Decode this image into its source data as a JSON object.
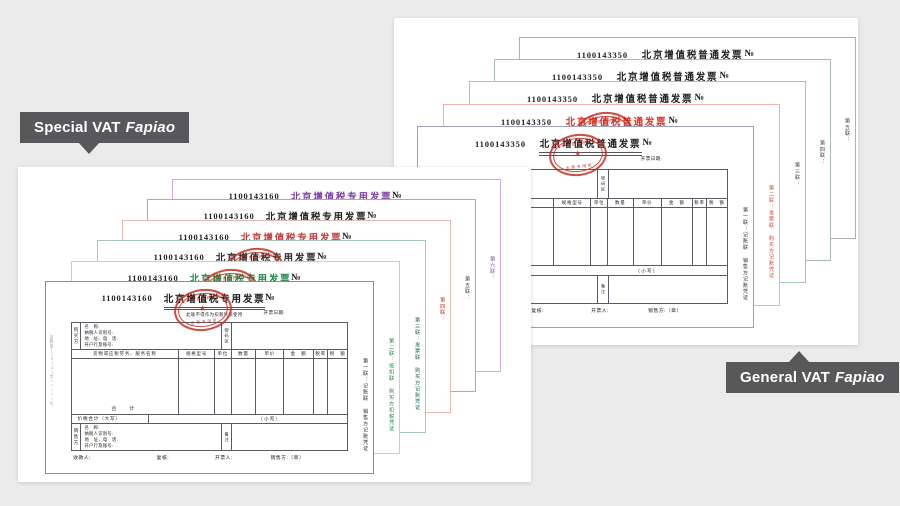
{
  "background": "#ebebeb",
  "labels": {
    "bg": "#58585a",
    "fg": "#ffffff",
    "special": {
      "text": "Special VAT",
      "em": "Fapiao"
    },
    "general": {
      "text": "General VAT",
      "em": "Fapiao"
    }
  },
  "invoice_common": {
    "no_symbol": "№",
    "date_label": "开票日期:",
    "buyer_party_label": "购买方",
    "seller_party_label": "销售方",
    "party_rows": [
      "名　称:",
      "纳税人识别号:",
      "地　址、电　话:",
      "开户行及账号:"
    ],
    "password_area_label": "密码区",
    "remarks_label": "备注",
    "item_headers": [
      "货物或应税劳务、服务名称",
      "规格型号",
      "单位",
      "数量",
      "单价",
      "金　额",
      "税率",
      "税　额"
    ],
    "total_label": "合　计",
    "grand_total_label": "价税合计（大写）",
    "small_figures_label": "（小写）",
    "footer_items": [
      "收款人:",
      "复核:",
      "开票人:",
      "销售方:（章）"
    ],
    "left_strip_text": "京税监[2014]字×××××号",
    "stamp": {
      "top": "北京市国家税务局",
      "middle": "★",
      "bottom": "发票专用章"
    }
  },
  "stacks": [
    {
      "id": "general",
      "serial": "1100143350",
      "title": "北京增值税普通发票",
      "subtitle_note": "",
      "sheets": [
        {
          "copy_label": "第五联：",
          "title_color": "#1f1f1f",
          "border_color": "#b0b0b0",
          "label_color": "#444444",
          "stamp": false,
          "full": false
        },
        {
          "copy_label": "第四联：",
          "title_color": "#1f1f1f",
          "border_color": "#a8bcb4",
          "label_color": "#444444",
          "stamp": false,
          "full": false
        },
        {
          "copy_label": "第三联：",
          "title_color": "#1f1f1f",
          "border_color": "#a6c4bc",
          "label_color": "#444444",
          "stamp": false,
          "full": false
        },
        {
          "copy_label": "第二联：发票联 购买方记账凭证",
          "title_color": "#d93424",
          "border_color": "#f0b2a2",
          "label_color": "#d94a36",
          "stamp": true,
          "full": false
        },
        {
          "copy_label": "第一联：记账联 销售方记账凭证",
          "title_color": "#1f1f1f",
          "border_color": "#99a1b2",
          "label_color": "#333333",
          "stamp": true,
          "full": true
        }
      ]
    },
    {
      "id": "special",
      "serial": "1100143160",
      "title": "北京增值税专用发票",
      "subtitle_note": "此联不得作为扣税凭证使用",
      "sheets": [
        {
          "copy_label": "第六联：",
          "title_color": "#7b3fa0",
          "border_color": "#d2a9da",
          "label_color": "#8a4fa8",
          "stamp": false,
          "full": false
        },
        {
          "copy_label": "第五联：",
          "title_color": "#222222",
          "border_color": "#ababab",
          "label_color": "#444444",
          "stamp": false,
          "full": false
        },
        {
          "copy_label": "第四联：",
          "title_color": "#c43a3a",
          "border_color": "#e6b8b0",
          "label_color": "#c0392b",
          "stamp": false,
          "full": false
        },
        {
          "copy_label": "第三联：发票联 购买方记账凭证",
          "title_color": "#2b2b2b",
          "border_color": "#a6c8c0",
          "label_color": "#16695a",
          "stamp": true,
          "full": false
        },
        {
          "copy_label": "第二联：抵扣联 购买方扣税凭证",
          "title_color": "#1e8a44",
          "border_color": "#b7d8c3",
          "label_color": "#1e8a44",
          "stamp": true,
          "full": false
        },
        {
          "copy_label": "第一联：记账联 销售方记账凭证",
          "title_color": "#1a1a1a",
          "border_color": "#8c8c8c",
          "label_color": "#333333",
          "stamp": true,
          "full": true
        }
      ]
    }
  ]
}
